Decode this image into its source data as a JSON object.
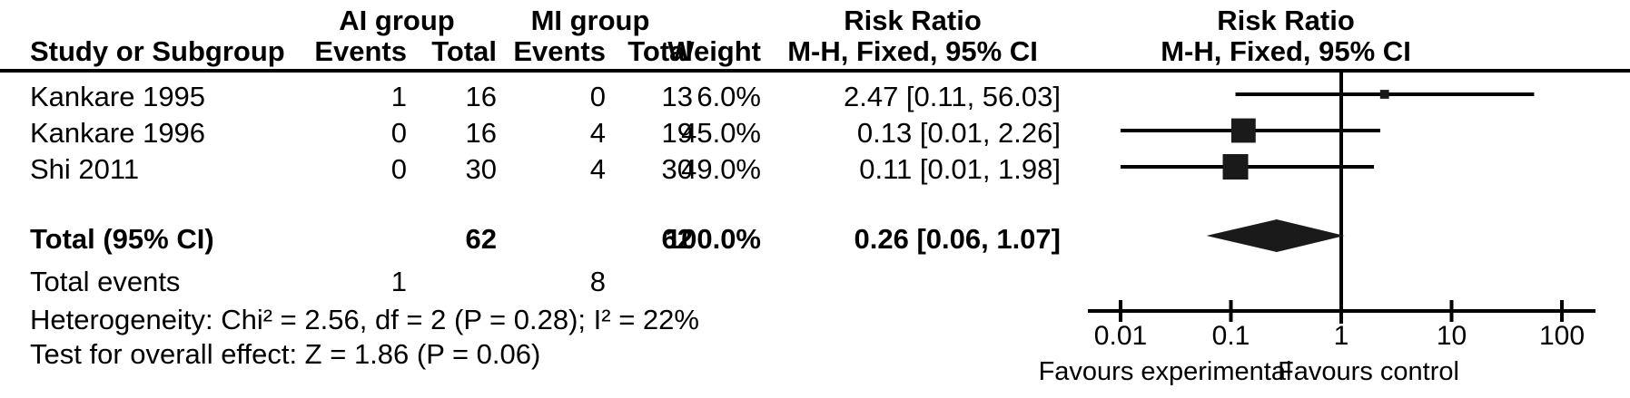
{
  "colors": {
    "ink": "#000000",
    "marker_fill": "#1a1a1a"
  },
  "header": {
    "study_col": "Study or Subgroup",
    "group1": {
      "name": "AI group",
      "events": "Events",
      "total": "Total"
    },
    "group2": {
      "name": "MI group",
      "events": "Events",
      "total": "Total"
    },
    "weight_col": "Weight",
    "stat_col": {
      "line1": "Risk Ratio",
      "line2": "M-H, Fixed, 95% CI"
    },
    "plot_col": {
      "line1": "Risk Ratio",
      "line2": "M-H, Fixed, 95% CI"
    }
  },
  "rows": [
    {
      "name": "Kankare 1995",
      "events1": "1",
      "total1": "16",
      "events2": "0",
      "total2": "13",
      "weight": "6.0%",
      "estimate": "2.47 [0.11, 56.03]"
    },
    {
      "name": "Kankare 1996",
      "events1": "0",
      "total1": "16",
      "events2": "4",
      "total2": "19",
      "weight": "45.0%",
      "estimate": "0.13 [0.01, 2.26]"
    },
    {
      "name": "Shi 2011",
      "events1": "0",
      "total1": "30",
      "events2": "4",
      "total2": "30",
      "weight": "49.0%",
      "estimate": "0.11 [0.01, 1.98]"
    }
  ],
  "totals": {
    "label": "Total (95% CI)",
    "total1": "62",
    "total2": "62",
    "weight": "100.0%",
    "estimate": "0.26 [0.06, 1.07]"
  },
  "total_events": {
    "label": "Total events",
    "events1": "1",
    "events2": "8"
  },
  "footnotes": {
    "heterogeneity": "Heterogeneity: Chi² = 2.56, df = 2 (P = 0.28); I² = 22%",
    "overall_effect": "Test for overall effect: Z = 1.86 (P = 0.06)"
  },
  "axis": {
    "tick_labels": [
      "0.01",
      "0.1",
      "1",
      "10",
      "100"
    ],
    "favours_left": "Favours experimental",
    "favours_right": "Favours control"
  },
  "chart_data": {
    "type": "forest",
    "effect_measure": "Risk Ratio",
    "method": "M-H, Fixed, 95% CI",
    "x_scale": "log10",
    "x_ticks": [
      0.01,
      0.1,
      1,
      10,
      100
    ],
    "xlim": [
      0.005,
      180
    ],
    "null_value": 1,
    "studies": [
      {
        "label": "Kankare 1995",
        "group1_events": 1,
        "group1_total": 16,
        "group2_events": 0,
        "group2_total": 13,
        "weight_pct": 6.0,
        "rr": 2.47,
        "ci_low": 0.11,
        "ci_high": 56.03
      },
      {
        "label": "Kankare 1996",
        "group1_events": 0,
        "group1_total": 16,
        "group2_events": 4,
        "group2_total": 19,
        "weight_pct": 45.0,
        "rr": 0.13,
        "ci_low": 0.01,
        "ci_high": 2.26
      },
      {
        "label": "Shi 2011",
        "group1_events": 0,
        "group1_total": 30,
        "group2_events": 4,
        "group2_total": 30,
        "weight_pct": 49.0,
        "rr": 0.11,
        "ci_low": 0.01,
        "ci_high": 1.98
      }
    ],
    "total": {
      "label": "Total (95% CI)",
      "group1_events": 1,
      "group1_total": 62,
      "group2_events": 8,
      "group2_total": 62,
      "weight_pct": 100.0,
      "rr": 0.26,
      "ci_low": 0.06,
      "ci_high": 1.07
    },
    "heterogeneity": {
      "chi2": 2.56,
      "df": 2,
      "p": 0.28,
      "i2_pct": 22
    },
    "overall_effect": {
      "z": 1.86,
      "p": 0.06
    },
    "xlabel_left": "Favours experimental",
    "xlabel_right": "Favours control",
    "group1_name": "AI group",
    "group2_name": "MI group"
  }
}
